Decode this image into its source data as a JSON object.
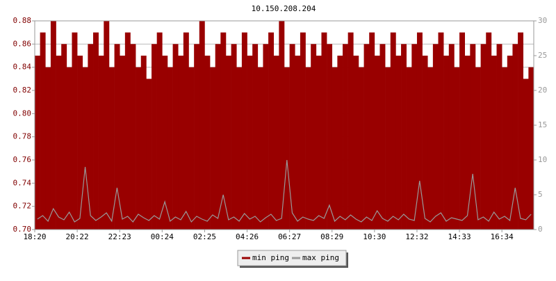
{
  "chart_data": {
    "type": "combo",
    "title": "10.150.208.204",
    "categories": [
      "18:20",
      null,
      null,
      null,
      null,
      null,
      null,
      null,
      "20:22",
      null,
      null,
      null,
      null,
      null,
      null,
      null,
      "22:23",
      null,
      null,
      null,
      null,
      null,
      null,
      null,
      "00:24",
      null,
      null,
      null,
      null,
      null,
      null,
      null,
      "02:25",
      null,
      null,
      null,
      null,
      null,
      null,
      null,
      "04:26",
      null,
      null,
      null,
      null,
      null,
      null,
      null,
      "06:27",
      null,
      null,
      null,
      null,
      null,
      null,
      null,
      "08:29",
      null,
      null,
      null,
      null,
      null,
      null,
      null,
      "10:30",
      null,
      null,
      null,
      null,
      null,
      null,
      null,
      "12:32",
      null,
      null,
      null,
      null,
      null,
      null,
      null,
      "14:33",
      null,
      null,
      null,
      null,
      null,
      null,
      null,
      "16:34",
      null,
      null,
      null,
      null,
      null
    ],
    "series": [
      {
        "name": "min ping",
        "type": "bar",
        "color": "#990000",
        "values": [
          0.85,
          0.87,
          0.84,
          0.88,
          0.85,
          0.86,
          0.84,
          0.87,
          0.85,
          0.84,
          0.86,
          0.87,
          0.85,
          0.88,
          0.84,
          0.86,
          0.85,
          0.87,
          0.86,
          0.84,
          0.85,
          0.83,
          0.86,
          0.87,
          0.85,
          0.84,
          0.86,
          0.85,
          0.87,
          0.84,
          0.86,
          0.88,
          0.85,
          0.84,
          0.86,
          0.87,
          0.85,
          0.86,
          0.84,
          0.87,
          0.85,
          0.86,
          0.84,
          0.86,
          0.87,
          0.85,
          0.88,
          0.84,
          0.86,
          0.85,
          0.87,
          0.84,
          0.86,
          0.85,
          0.87,
          0.86,
          0.84,
          0.85,
          0.86,
          0.87,
          0.85,
          0.84,
          0.86,
          0.87,
          0.85,
          0.86,
          0.84,
          0.87,
          0.85,
          0.86,
          0.84,
          0.86,
          0.87,
          0.85,
          0.84,
          0.86,
          0.87,
          0.85,
          0.86,
          0.84,
          0.87,
          0.85,
          0.86,
          0.84,
          0.86,
          0.87,
          0.85,
          0.86,
          0.84,
          0.85,
          0.86,
          0.87,
          0.83,
          0.84
        ]
      },
      {
        "name": "max ping",
        "type": "line",
        "axis": "y2",
        "color": "#999999",
        "values": [
          1.5,
          2,
          1.2,
          3,
          1.8,
          1.4,
          2.5,
          1.1,
          1.6,
          9,
          2,
          1.3,
          1.8,
          2.4,
          1.2,
          6,
          1.5,
          1.9,
          1.1,
          2.2,
          1.7,
          1.3,
          2,
          1.5,
          4,
          1.2,
          1.8,
          1.4,
          2.6,
          1.1,
          1.9,
          1.5,
          1.2,
          2.1,
          1.6,
          5,
          1.4,
          1.8,
          1.2,
          2.3,
          1.5,
          1.9,
          1.1,
          1.7,
          2.2,
          1.3,
          1.6,
          10,
          2.4,
          1.2,
          1.8,
          1.5,
          1.3,
          2,
          1.6,
          3.5,
          1.2,
          1.9,
          1.4,
          2.1,
          1.5,
          1.1,
          1.8,
          1.3,
          2.7,
          1.6,
          1.2,
          1.9,
          1.4,
          2.2,
          1.5,
          1.3,
          7,
          1.6,
          1.1,
          1.9,
          2.4,
          1.2,
          1.7,
          1.5,
          1.3,
          2,
          8,
          1.4,
          1.8,
          1.2,
          2.5,
          1.5,
          1.9,
          1.3,
          6,
          1.6,
          1.4,
          2.2
        ]
      }
    ],
    "ylim": [
      0.7,
      0.88
    ],
    "yticks": [
      {
        "value": 0.7,
        "label": "0.70"
      },
      {
        "value": 0.72,
        "label": "0.72"
      },
      {
        "value": 0.74,
        "label": "0.74"
      },
      {
        "value": 0.76,
        "label": "0.76"
      },
      {
        "value": 0.78,
        "label": "0.78"
      },
      {
        "value": 0.8,
        "label": "0.80"
      },
      {
        "value": 0.82,
        "label": "0.82"
      },
      {
        "value": 0.84,
        "label": "0.84"
      },
      {
        "value": 0.86,
        "label": "0.86"
      },
      {
        "value": 0.88,
        "label": "0.88"
      }
    ],
    "y2lim": [
      0,
      30
    ],
    "y2ticks": [
      0,
      5,
      10,
      15,
      20,
      25,
      30
    ],
    "grid": true,
    "legend": "bottom"
  }
}
